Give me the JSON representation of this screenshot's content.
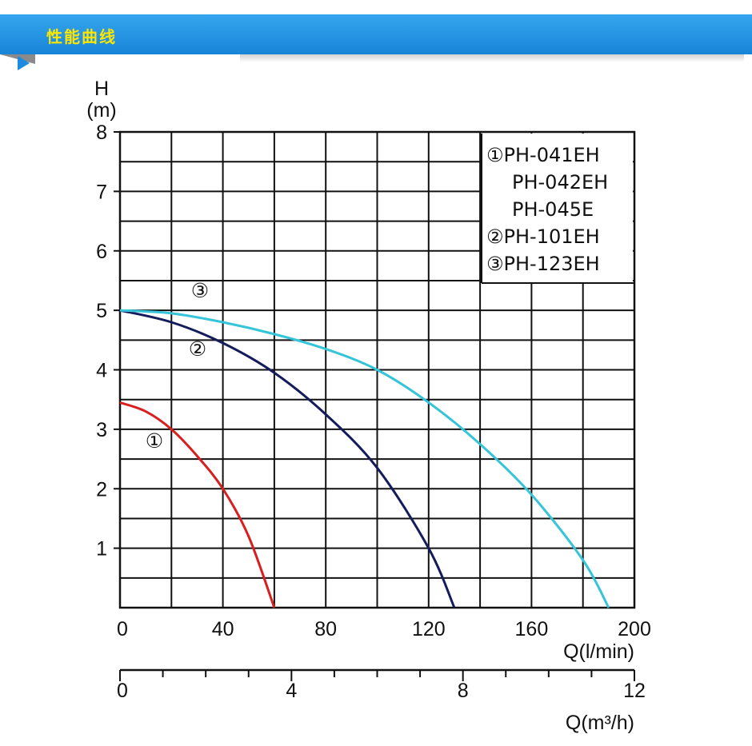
{
  "header": {
    "title": "性能曲线"
  },
  "colors": {
    "header": "#1e8fe2",
    "title": "#ffe600",
    "curve1": "#d81e1e",
    "curve2": "#141c5c",
    "curve3": "#35c4d8"
  },
  "chart_data": {
    "type": "line",
    "title": "",
    "ylabel": "H",
    "yunit": "(m)",
    "xlabel": "Q(l/min)",
    "x2label": "Q(m³/h)",
    "xlim": [
      0,
      200
    ],
    "ylim": [
      0,
      8
    ],
    "x2lim": [
      0,
      12
    ],
    "xticks": [
      "0",
      "40",
      "80",
      "120",
      "160",
      "200"
    ],
    "yticks": [
      "1",
      "2",
      "3",
      "4",
      "5",
      "6",
      "7",
      "8"
    ],
    "x2ticks": [
      "0",
      "4",
      "8",
      "12"
    ],
    "grid": true,
    "legend_position": "top-right",
    "legend": [
      "①PH-041EH",
      "PH-042EH",
      "PH-045E",
      "②PH-101EH",
      "③PH-123EH"
    ],
    "series": [
      {
        "name": "①",
        "label": "①",
        "points": [
          [
            0,
            3.45
          ],
          [
            10,
            3.3
          ],
          [
            20,
            3.0
          ],
          [
            30,
            2.55
          ],
          [
            40,
            2.0
          ],
          [
            50,
            1.2
          ],
          [
            60,
            0
          ]
        ]
      },
      {
        "name": "②",
        "label": "②",
        "points": [
          [
            0,
            5.0
          ],
          [
            20,
            4.8
          ],
          [
            40,
            4.45
          ],
          [
            60,
            3.95
          ],
          [
            80,
            3.25
          ],
          [
            100,
            2.35
          ],
          [
            120,
            1.0
          ],
          [
            130,
            0
          ]
        ]
      },
      {
        "name": "③",
        "label": "③",
        "points": [
          [
            0,
            5.0
          ],
          [
            20,
            4.95
          ],
          [
            40,
            4.8
          ],
          [
            60,
            4.6
          ],
          [
            80,
            4.35
          ],
          [
            100,
            4.0
          ],
          [
            120,
            3.45
          ],
          [
            140,
            2.75
          ],
          [
            160,
            1.9
          ],
          [
            180,
            0.8
          ],
          [
            190,
            0
          ]
        ]
      }
    ]
  }
}
